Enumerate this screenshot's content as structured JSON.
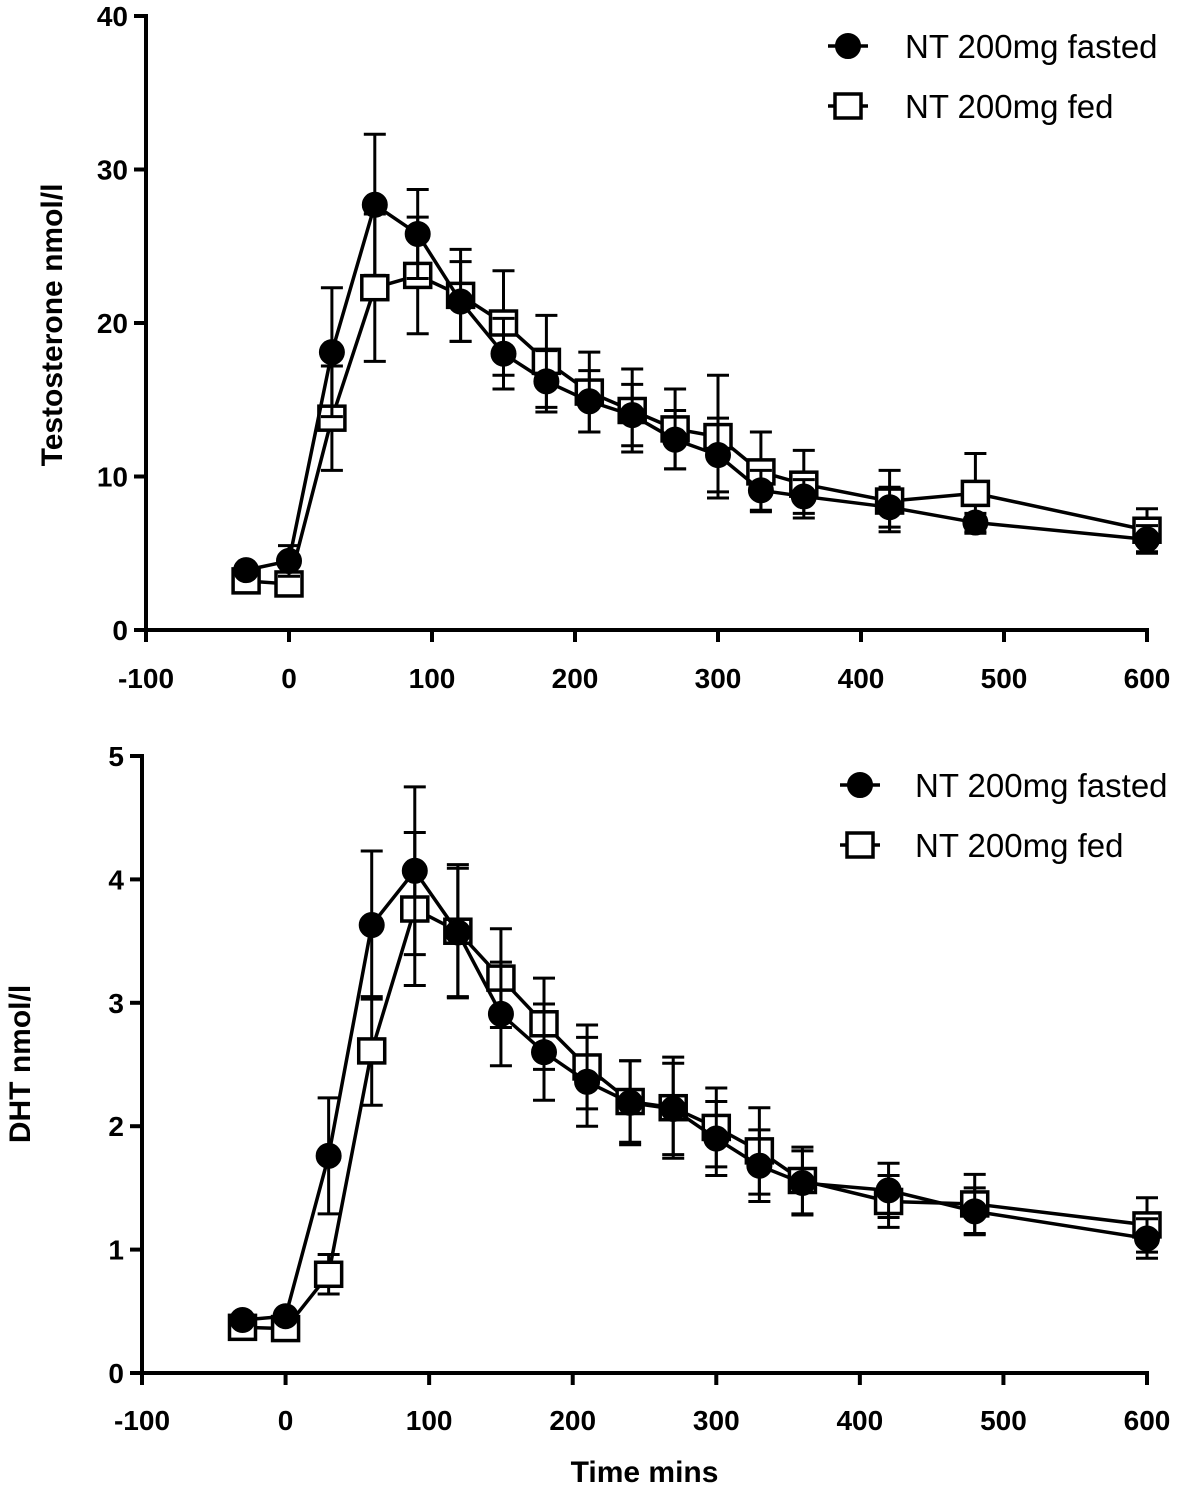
{
  "chart_data": [
    {
      "type": "line",
      "ylabel": "Testosterone nmol/l",
      "xlabel": "",
      "xlim": [
        -100,
        600
      ],
      "ylim": [
        0,
        40
      ],
      "x_ticks": [
        -100,
        0,
        100,
        200,
        300,
        400,
        500,
        600
      ],
      "y_ticks": [
        0,
        10,
        20,
        30,
        40
      ],
      "x_tick_labels": [
        "-100",
        "0",
        "100",
        "200",
        "300",
        "400",
        "500",
        "600"
      ],
      "y_tick_labels": [
        "0",
        "10",
        "20",
        "30",
        "40"
      ],
      "legend_position": "top-right",
      "grid": false,
      "series": [
        {
          "name": "NT 200mg fasted",
          "marker": "filled-circle",
          "points": [
            {
              "x": -30,
              "y": 3.9,
              "err": 0.3
            },
            {
              "x": 0,
              "y": 4.5,
              "err": 1.0
            },
            {
              "x": 30,
              "y": 18.1,
              "err": 4.2
            },
            {
              "x": 60,
              "y": 27.7,
              "err": 4.6
            },
            {
              "x": 90,
              "y": 25.8,
              "err": 2.9
            },
            {
              "x": 120,
              "y": 21.4,
              "err": 2.6
            },
            {
              "x": 150,
              "y": 18.0,
              "err": 2.3
            },
            {
              "x": 180,
              "y": 16.2,
              "err": 2.0
            },
            {
              "x": 210,
              "y": 14.9,
              "err": 2.0
            },
            {
              "x": 240,
              "y": 14.0,
              "err": 2.0
            },
            {
              "x": 270,
              "y": 12.4,
              "err": 1.9
            },
            {
              "x": 300,
              "y": 11.4,
              "err": 2.4
            },
            {
              "x": 330,
              "y": 9.1,
              "err": 1.3
            },
            {
              "x": 360,
              "y": 8.7,
              "err": 1.1
            },
            {
              "x": 420,
              "y": 8.0,
              "err": 1.3
            },
            {
              "x": 480,
              "y": 7.0,
              "err": 0.6
            },
            {
              "x": 600,
              "y": 5.9,
              "err": 0.9
            }
          ]
        },
        {
          "name": "NT 200mg fed",
          "marker": "open-square",
          "points": [
            {
              "x": -30,
              "y": 3.2,
              "err": 0.4
            },
            {
              "x": 0,
              "y": 3.0,
              "err": 0.5
            },
            {
              "x": 30,
              "y": 13.8,
              "err": 3.4
            },
            {
              "x": 60,
              "y": 22.3,
              "err": 4.8
            },
            {
              "x": 90,
              "y": 23.1,
              "err": 3.8
            },
            {
              "x": 120,
              "y": 21.8,
              "err": 3.0
            },
            {
              "x": 150,
              "y": 20.0,
              "err": 3.4
            },
            {
              "x": 180,
              "y": 17.5,
              "err": 3.0
            },
            {
              "x": 210,
              "y": 15.5,
              "err": 2.6
            },
            {
              "x": 240,
              "y": 14.3,
              "err": 2.7
            },
            {
              "x": 270,
              "y": 13.1,
              "err": 2.6
            },
            {
              "x": 300,
              "y": 12.6,
              "err": 4.0
            },
            {
              "x": 330,
              "y": 10.3,
              "err": 2.6
            },
            {
              "x": 360,
              "y": 9.5,
              "err": 2.2
            },
            {
              "x": 420,
              "y": 8.4,
              "err": 2.0
            },
            {
              "x": 480,
              "y": 8.9,
              "err": 2.6
            },
            {
              "x": 600,
              "y": 6.5,
              "err": 1.4
            }
          ]
        }
      ]
    },
    {
      "type": "line",
      "ylabel": "DHT nmol/l",
      "xlabel": "Time mins",
      "xlim": [
        -100,
        600
      ],
      "ylim": [
        0,
        5
      ],
      "x_ticks": [
        -100,
        0,
        100,
        200,
        300,
        400,
        500,
        600
      ],
      "y_ticks": [
        0,
        1,
        2,
        3,
        4,
        5
      ],
      "x_tick_labels": [
        "-100",
        "0",
        "100",
        "200",
        "300",
        "400",
        "500",
        "600"
      ],
      "y_tick_labels": [
        "0",
        "1",
        "2",
        "3",
        "4",
        "5"
      ],
      "legend_position": "top-right",
      "grid": false,
      "series": [
        {
          "name": "NT 200mg fasted",
          "marker": "filled-circle",
          "points": [
            {
              "x": -30,
              "y": 0.43,
              "err": 0.04
            },
            {
              "x": 0,
              "y": 0.46,
              "err": 0.04
            },
            {
              "x": 30,
              "y": 1.76,
              "err": 0.47
            },
            {
              "x": 60,
              "y": 3.63,
              "err": 0.6
            },
            {
              "x": 90,
              "y": 4.07,
              "err": 0.68
            },
            {
              "x": 120,
              "y": 3.57,
              "err": 0.52
            },
            {
              "x": 150,
              "y": 2.91,
              "err": 0.42
            },
            {
              "x": 180,
              "y": 2.6,
              "err": 0.39
            },
            {
              "x": 210,
              "y": 2.36,
              "err": 0.36
            },
            {
              "x": 240,
              "y": 2.19,
              "err": 0.34
            },
            {
              "x": 270,
              "y": 2.14,
              "err": 0.37
            },
            {
              "x": 300,
              "y": 1.9,
              "err": 0.3
            },
            {
              "x": 330,
              "y": 1.68,
              "err": 0.29
            },
            {
              "x": 360,
              "y": 1.54,
              "err": 0.26
            },
            {
              "x": 420,
              "y": 1.48,
              "err": 0.22
            },
            {
              "x": 480,
              "y": 1.31,
              "err": 0.19
            },
            {
              "x": 600,
              "y": 1.09,
              "err": 0.16
            }
          ]
        },
        {
          "name": "NT 200mg fed",
          "marker": "open-square",
          "points": [
            {
              "x": -30,
              "y": 0.37,
              "err": 0.04
            },
            {
              "x": 0,
              "y": 0.36,
              "err": 0.04
            },
            {
              "x": 30,
              "y": 0.8,
              "err": 0.16
            },
            {
              "x": 60,
              "y": 2.61,
              "err": 0.44
            },
            {
              "x": 90,
              "y": 3.76,
              "err": 0.62
            },
            {
              "x": 120,
              "y": 3.58,
              "err": 0.54
            },
            {
              "x": 150,
              "y": 3.2,
              "err": 0.4
            },
            {
              "x": 180,
              "y": 2.83,
              "err": 0.37
            },
            {
              "x": 210,
              "y": 2.48,
              "err": 0.34
            },
            {
              "x": 240,
              "y": 2.2,
              "err": 0.33
            },
            {
              "x": 270,
              "y": 2.15,
              "err": 0.41
            },
            {
              "x": 300,
              "y": 1.99,
              "err": 0.32
            },
            {
              "x": 330,
              "y": 1.8,
              "err": 0.35
            },
            {
              "x": 360,
              "y": 1.56,
              "err": 0.27
            },
            {
              "x": 420,
              "y": 1.39,
              "err": 0.21
            },
            {
              "x": 480,
              "y": 1.37,
              "err": 0.24
            },
            {
              "x": 600,
              "y": 1.2,
              "err": 0.22
            }
          ]
        }
      ]
    }
  ]
}
